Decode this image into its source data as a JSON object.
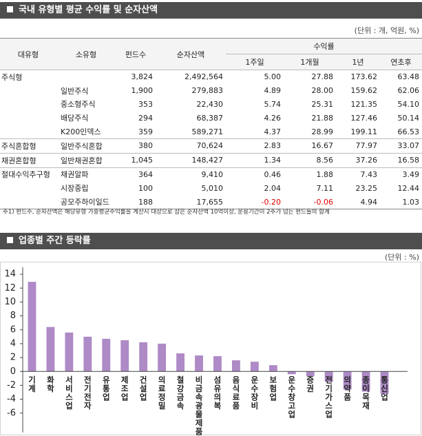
{
  "header": {
    "title": "국내 유형별 평균 수익률 및 순자산액",
    "unit": "(단위 : 개, 억원, %)"
  },
  "table": {
    "columns": [
      "대유형",
      "소유형",
      "펀드수",
      "순자산액"
    ],
    "return_group": "수익률",
    "return_columns": [
      "1주일",
      "1개월",
      "1년",
      "연초후"
    ],
    "groups": [
      {
        "label": "주식형",
        "total": [
          "3,824",
          "2,492,564",
          "5.00",
          "27.88",
          "173.62",
          "63.48"
        ],
        "rows": [
          {
            "name": "일반주식",
            "cells": [
              "1,900",
              "279,883",
              "4.89",
              "28.00",
              "159.62",
              "62.06"
            ]
          },
          {
            "name": "중소형주식",
            "cells": [
              "353",
              "22,430",
              "5.74",
              "25.31",
              "121.35",
              "54.10"
            ]
          },
          {
            "name": "배당주식",
            "cells": [
              "294",
              "68,387",
              "4.26",
              "21.88",
              "127.46",
              "50.14"
            ]
          },
          {
            "name": "K200인덱스",
            "cells": [
              "359",
              "589,271",
              "4.37",
              "28.99",
              "199.11",
              "66.53"
            ]
          }
        ]
      },
      {
        "label": "주식혼합형",
        "rows": [
          {
            "name": "일반주식혼합",
            "cells": [
              "380",
              "70,624",
              "2.83",
              "16.67",
              "77.97",
              "33.07"
            ]
          }
        ]
      },
      {
        "label": "채권혼합형",
        "rows": [
          {
            "name": "일반채권혼합",
            "cells": [
              "1,045",
              "148,427",
              "1.34",
              "8.56",
              "37.26",
              "16.58"
            ]
          }
        ]
      },
      {
        "label": "절대수익추구형",
        "rows": [
          {
            "name": "채권알파",
            "cells": [
              "364",
              "9,410",
              "0.46",
              "1.88",
              "7.43",
              "3.49"
            ]
          },
          {
            "name": "시장중립",
            "cells": [
              "100",
              "5,010",
              "2.04",
              "7.11",
              "23.25",
              "12.44"
            ]
          },
          {
            "name": "공모주하이일드",
            "cells": [
              "188",
              "17,655",
              "-0.20",
              "-0.06",
              "4.94",
              "1.03"
            ]
          }
        ]
      }
    ]
  },
  "note": "주1) 펀드수, 순자산액은 해당유형 가중평균수익률을 계산시 대상으로 삼은 순자산액 10억이상, 운용기간이 2주가 넘는 펀드들의 합계",
  "chart_header": {
    "title": "업종별 주간 등락률",
    "unit": "(단위 : %)"
  },
  "chart_data": {
    "type": "bar",
    "color": "#ae8ac6",
    "categories": [
      "기계",
      "화학",
      "서비스업",
      "전기전자",
      "유통업",
      "제조업",
      "건설업",
      "의료정밀",
      "철강금속",
      "비금속광물제품",
      "섬유의복",
      "음식료품",
      "운수장비",
      "보험업",
      "운수창고업",
      "증권",
      "전기가스업",
      "의약품",
      "종이목재",
      "통신업"
    ],
    "values": [
      12.9,
      6.4,
      5.6,
      5.0,
      4.7,
      4.5,
      4.2,
      4.0,
      2.6,
      2.3,
      2.2,
      1.6,
      1.4,
      0.9,
      -0.4,
      -0.7,
      -1.5,
      -2.6,
      -2.9,
      -3.2
    ],
    "ylim": [
      -8.8,
      15
    ],
    "yticks": [
      -6,
      -4,
      -2,
      0,
      2,
      4,
      6,
      8,
      10,
      12,
      14
    ]
  }
}
